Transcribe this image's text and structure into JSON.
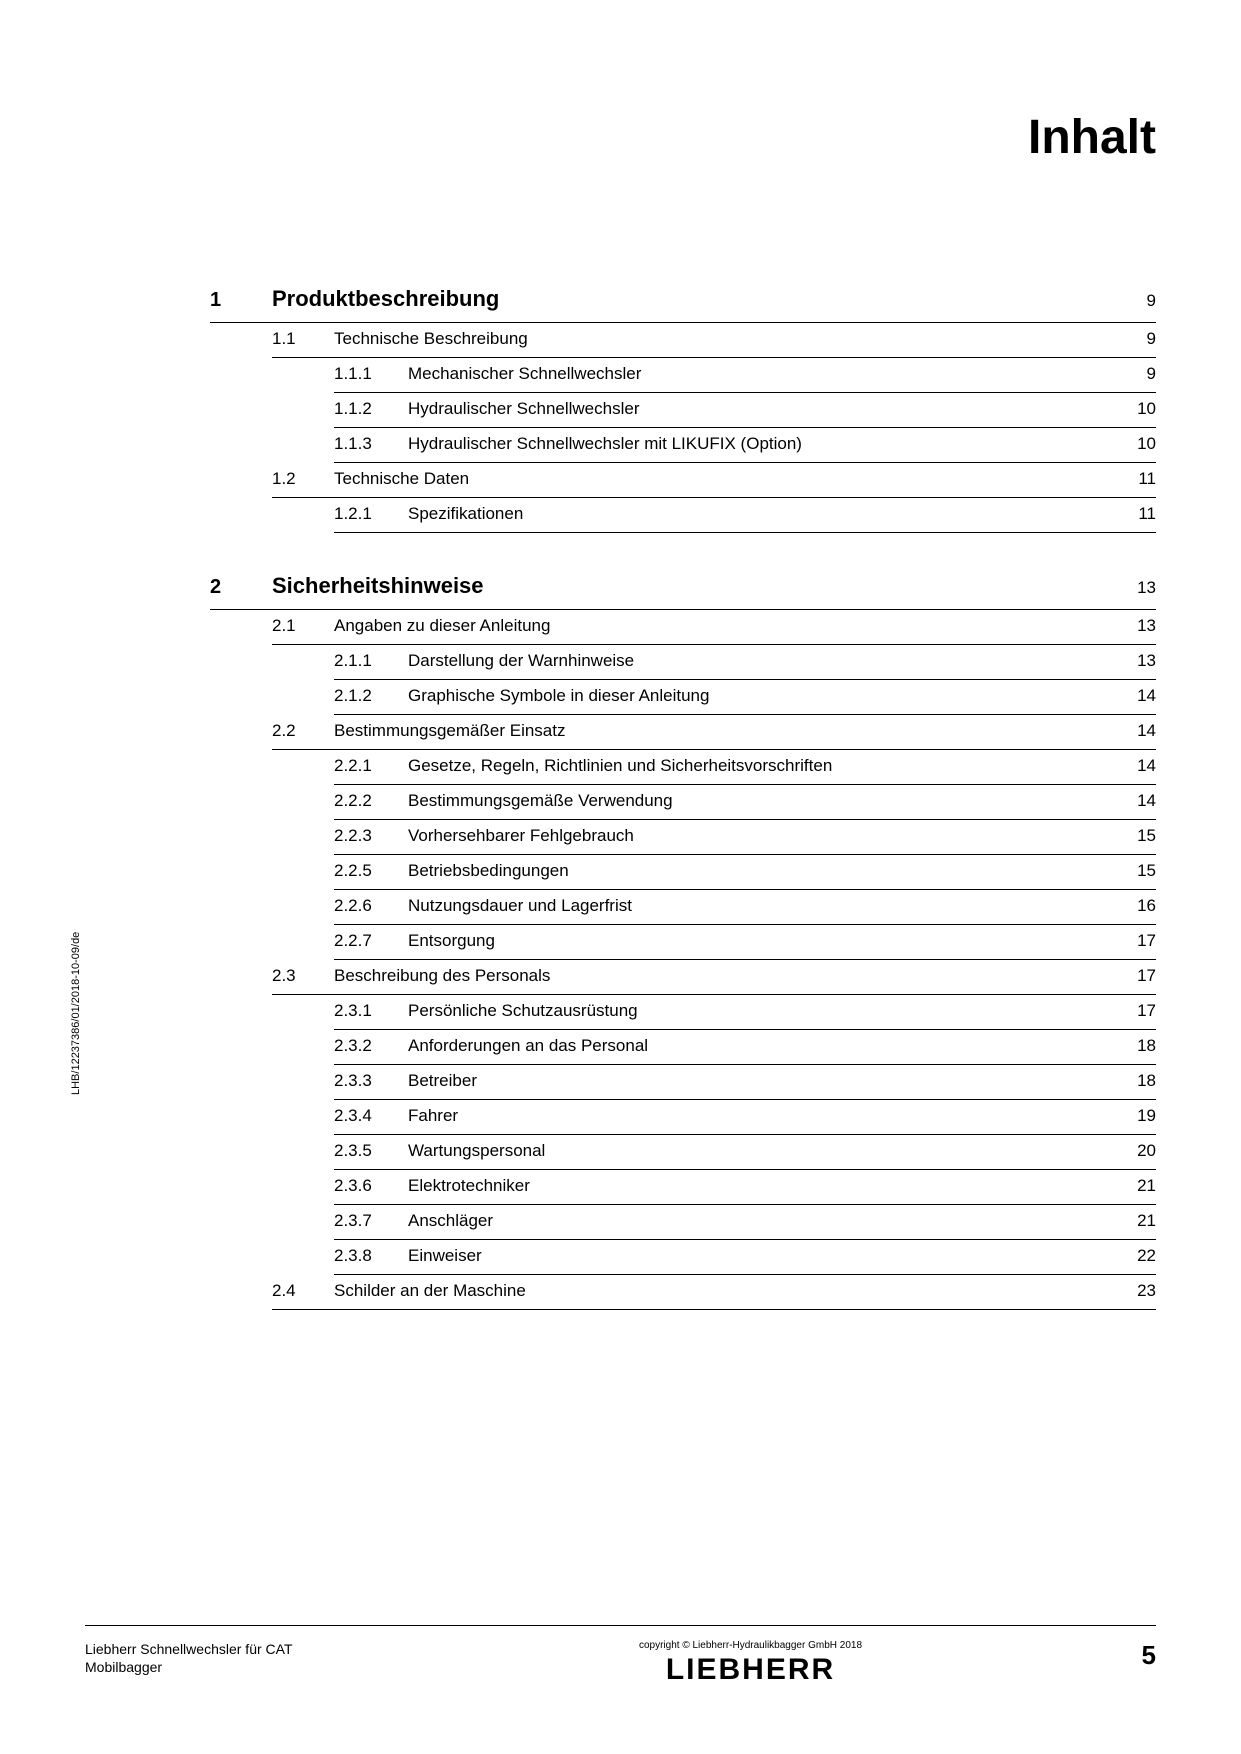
{
  "title": "Inhalt",
  "side_text": "LHB/12237386/01/2018-10-09/de",
  "footer": {
    "left_line1": "Liebherr Schnellwechsler für CAT",
    "left_line2": "Mobilbagger",
    "copyright": "copyright © Liebherr-Hydraulikbagger GmbH 2018",
    "logo": "LIEBHERR",
    "page_number": "5"
  },
  "chapters": [
    {
      "num": "1",
      "title": "Produktbeschreibung",
      "page": "9",
      "sections": [
        {
          "num": "1.1",
          "title": "Technische Beschreibung",
          "page": "9",
          "subs": [
            {
              "num": "1.1.1",
              "title": "Mechanischer Schnellwechsler",
              "page": "9"
            },
            {
              "num": "1.1.2",
              "title": "Hydraulischer Schnellwechsler",
              "page": "10"
            },
            {
              "num": "1.1.3",
              "title": "Hydraulischer Schnellwechsler mit LIKUFIX (Option)",
              "page": "10"
            }
          ]
        },
        {
          "num": "1.2",
          "title": "Technische Daten",
          "page": "11",
          "subs": [
            {
              "num": "1.2.1",
              "title": "Spezifikationen",
              "page": "11"
            }
          ]
        }
      ]
    },
    {
      "num": "2",
      "title": "Sicherheitshinweise",
      "page": "13",
      "sections": [
        {
          "num": "2.1",
          "title": "Angaben zu dieser Anleitung",
          "page": "13",
          "subs": [
            {
              "num": "2.1.1",
              "title": "Darstellung der Warnhinweise",
              "page": "13"
            },
            {
              "num": "2.1.2",
              "title": "Graphische Symbole in dieser Anleitung",
              "page": "14"
            }
          ]
        },
        {
          "num": "2.2",
          "title": "Bestimmungsgemäßer Einsatz",
          "page": "14",
          "subs": [
            {
              "num": "2.2.1",
              "title": "Gesetze, Regeln, Richtlinien und Sicherheitsvorschriften",
              "page": "14"
            },
            {
              "num": "2.2.2",
              "title": "Bestimmungsgemäße Verwendung",
              "page": "14"
            },
            {
              "num": "2.2.3",
              "title": "Vorhersehbarer Fehlgebrauch",
              "page": "15"
            },
            {
              "num": "2.2.5",
              "title": "Betriebsbedingungen",
              "page": "15"
            },
            {
              "num": "2.2.6",
              "title": "Nutzungsdauer und Lagerfrist",
              "page": "16"
            },
            {
              "num": "2.2.7",
              "title": "Entsorgung",
              "page": "17"
            }
          ]
        },
        {
          "num": "2.3",
          "title": "Beschreibung des Personals",
          "page": "17",
          "subs": [
            {
              "num": "2.3.1",
              "title": "Persönliche Schutzausrüstung",
              "page": "17"
            },
            {
              "num": "2.3.2",
              "title": "Anforderungen an das Personal",
              "page": "18"
            },
            {
              "num": "2.3.3",
              "title": "Betreiber",
              "page": "18"
            },
            {
              "num": "2.3.4",
              "title": "Fahrer",
              "page": "19"
            },
            {
              "num": "2.3.5",
              "title": "Wartungspersonal",
              "page": "20"
            },
            {
              "num": "2.3.6",
              "title": "Elektrotechniker",
              "page": "21"
            },
            {
              "num": "2.3.7",
              "title": "Anschläger",
              "page": "21"
            },
            {
              "num": "2.3.8",
              "title": "Einweiser",
              "page": "22"
            }
          ]
        },
        {
          "num": "2.4",
          "title": "Schilder an der Maschine",
          "page": "23",
          "subs": []
        }
      ]
    }
  ]
}
